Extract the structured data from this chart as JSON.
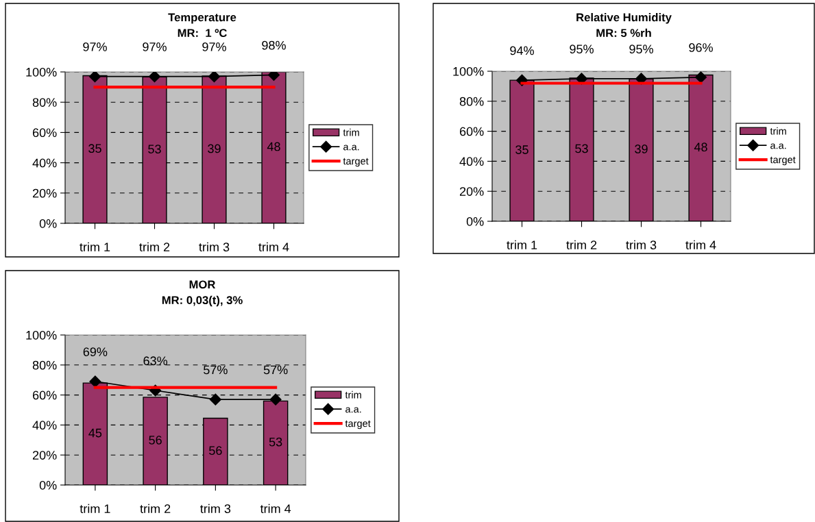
{
  "chart_data": [
    {
      "type": "bar",
      "title": "Temperature\nMR:  1 ºC",
      "categories": [
        "trim 1",
        "trim 2",
        "trim 3",
        "trim 4"
      ],
      "ylim": [
        0,
        100
      ],
      "yticks": [
        {
          "value": 0,
          "label": "0%"
        },
        {
          "value": 20,
          "label": "20%"
        },
        {
          "value": 40,
          "label": "40%"
        },
        {
          "value": 60,
          "label": "60%"
        },
        {
          "value": 80,
          "label": "80%"
        },
        {
          "value": 100,
          "label": "100%"
        }
      ],
      "grid": "y",
      "legend": "right",
      "annotations": [
        "35",
        "53",
        "39",
        "48"
      ],
      "series": [
        {
          "name": "trim",
          "color": "#993366",
          "values": [
            97.5,
            96.7,
            97.3,
            100
          ]
        },
        {
          "name": "a.a.",
          "type": "line",
          "color": "#000000",
          "marker": "diamond",
          "values": [
            97,
            97,
            97,
            98
          ],
          "value_labels": [
            "97%",
            "97%",
            "97%",
            "98%"
          ]
        },
        {
          "name": "target",
          "type": "line",
          "color": "#ff0000",
          "values": [
            90,
            90,
            90,
            90
          ]
        }
      ]
    },
    {
      "type": "bar",
      "title": "Relative Humidity\nMR: 5 %rh",
      "categories": [
        "trim 1",
        "trim 2",
        "trim 3",
        "trim 4"
      ],
      "ylim": [
        0,
        100
      ],
      "yticks": [
        {
          "value": 0,
          "label": "0%"
        },
        {
          "value": 20,
          "label": "20%"
        },
        {
          "value": 40,
          "label": "40%"
        },
        {
          "value": 60,
          "label": "60%"
        },
        {
          "value": 80,
          "label": "80%"
        },
        {
          "value": 100,
          "label": "100%"
        }
      ],
      "grid": "y",
      "legend": "right",
      "annotations": [
        "35",
        "53",
        "39",
        "48"
      ],
      "series": [
        {
          "name": "trim",
          "color": "#993366",
          "values": [
            94,
            95.5,
            95,
            97.5
          ]
        },
        {
          "name": "a.a.",
          "type": "line",
          "color": "#000000",
          "marker": "diamond",
          "values": [
            94,
            95,
            95,
            96
          ],
          "value_labels": [
            "94%",
            "95%",
            "95%",
            "96%"
          ]
        },
        {
          "name": "target",
          "type": "line",
          "color": "#ff0000",
          "values": [
            92,
            92,
            92,
            92
          ]
        }
      ]
    },
    {
      "type": "bar",
      "title": "MOR\nMR: 0,03(t), 3%",
      "categories": [
        "trim 1",
        "trim 2",
        "trim 3",
        "trim 4"
      ],
      "ylim": [
        0,
        100
      ],
      "yticks": [
        {
          "value": 0,
          "label": "0%"
        },
        {
          "value": 20,
          "label": "20%"
        },
        {
          "value": 40,
          "label": "40%"
        },
        {
          "value": 60,
          "label": "60%"
        },
        {
          "value": 80,
          "label": "80%"
        },
        {
          "value": 100,
          "label": "100%"
        }
      ],
      "grid": "y",
      "legend": "right",
      "annotations": [
        "45",
        "56",
        "56",
        "53"
      ],
      "series": [
        {
          "name": "trim",
          "color": "#993366",
          "values": [
            68,
            58.5,
            44.5,
            56
          ]
        },
        {
          "name": "a.a.",
          "type": "line",
          "color": "#000000",
          "marker": "diamond",
          "values": [
            69,
            63,
            57,
            57
          ],
          "value_labels": [
            "69%",
            "63%",
            "57%",
            "57%"
          ]
        },
        {
          "name": "target",
          "type": "line",
          "color": "#ff0000",
          "values": [
            65,
            65,
            65,
            65
          ]
        }
      ]
    }
  ]
}
